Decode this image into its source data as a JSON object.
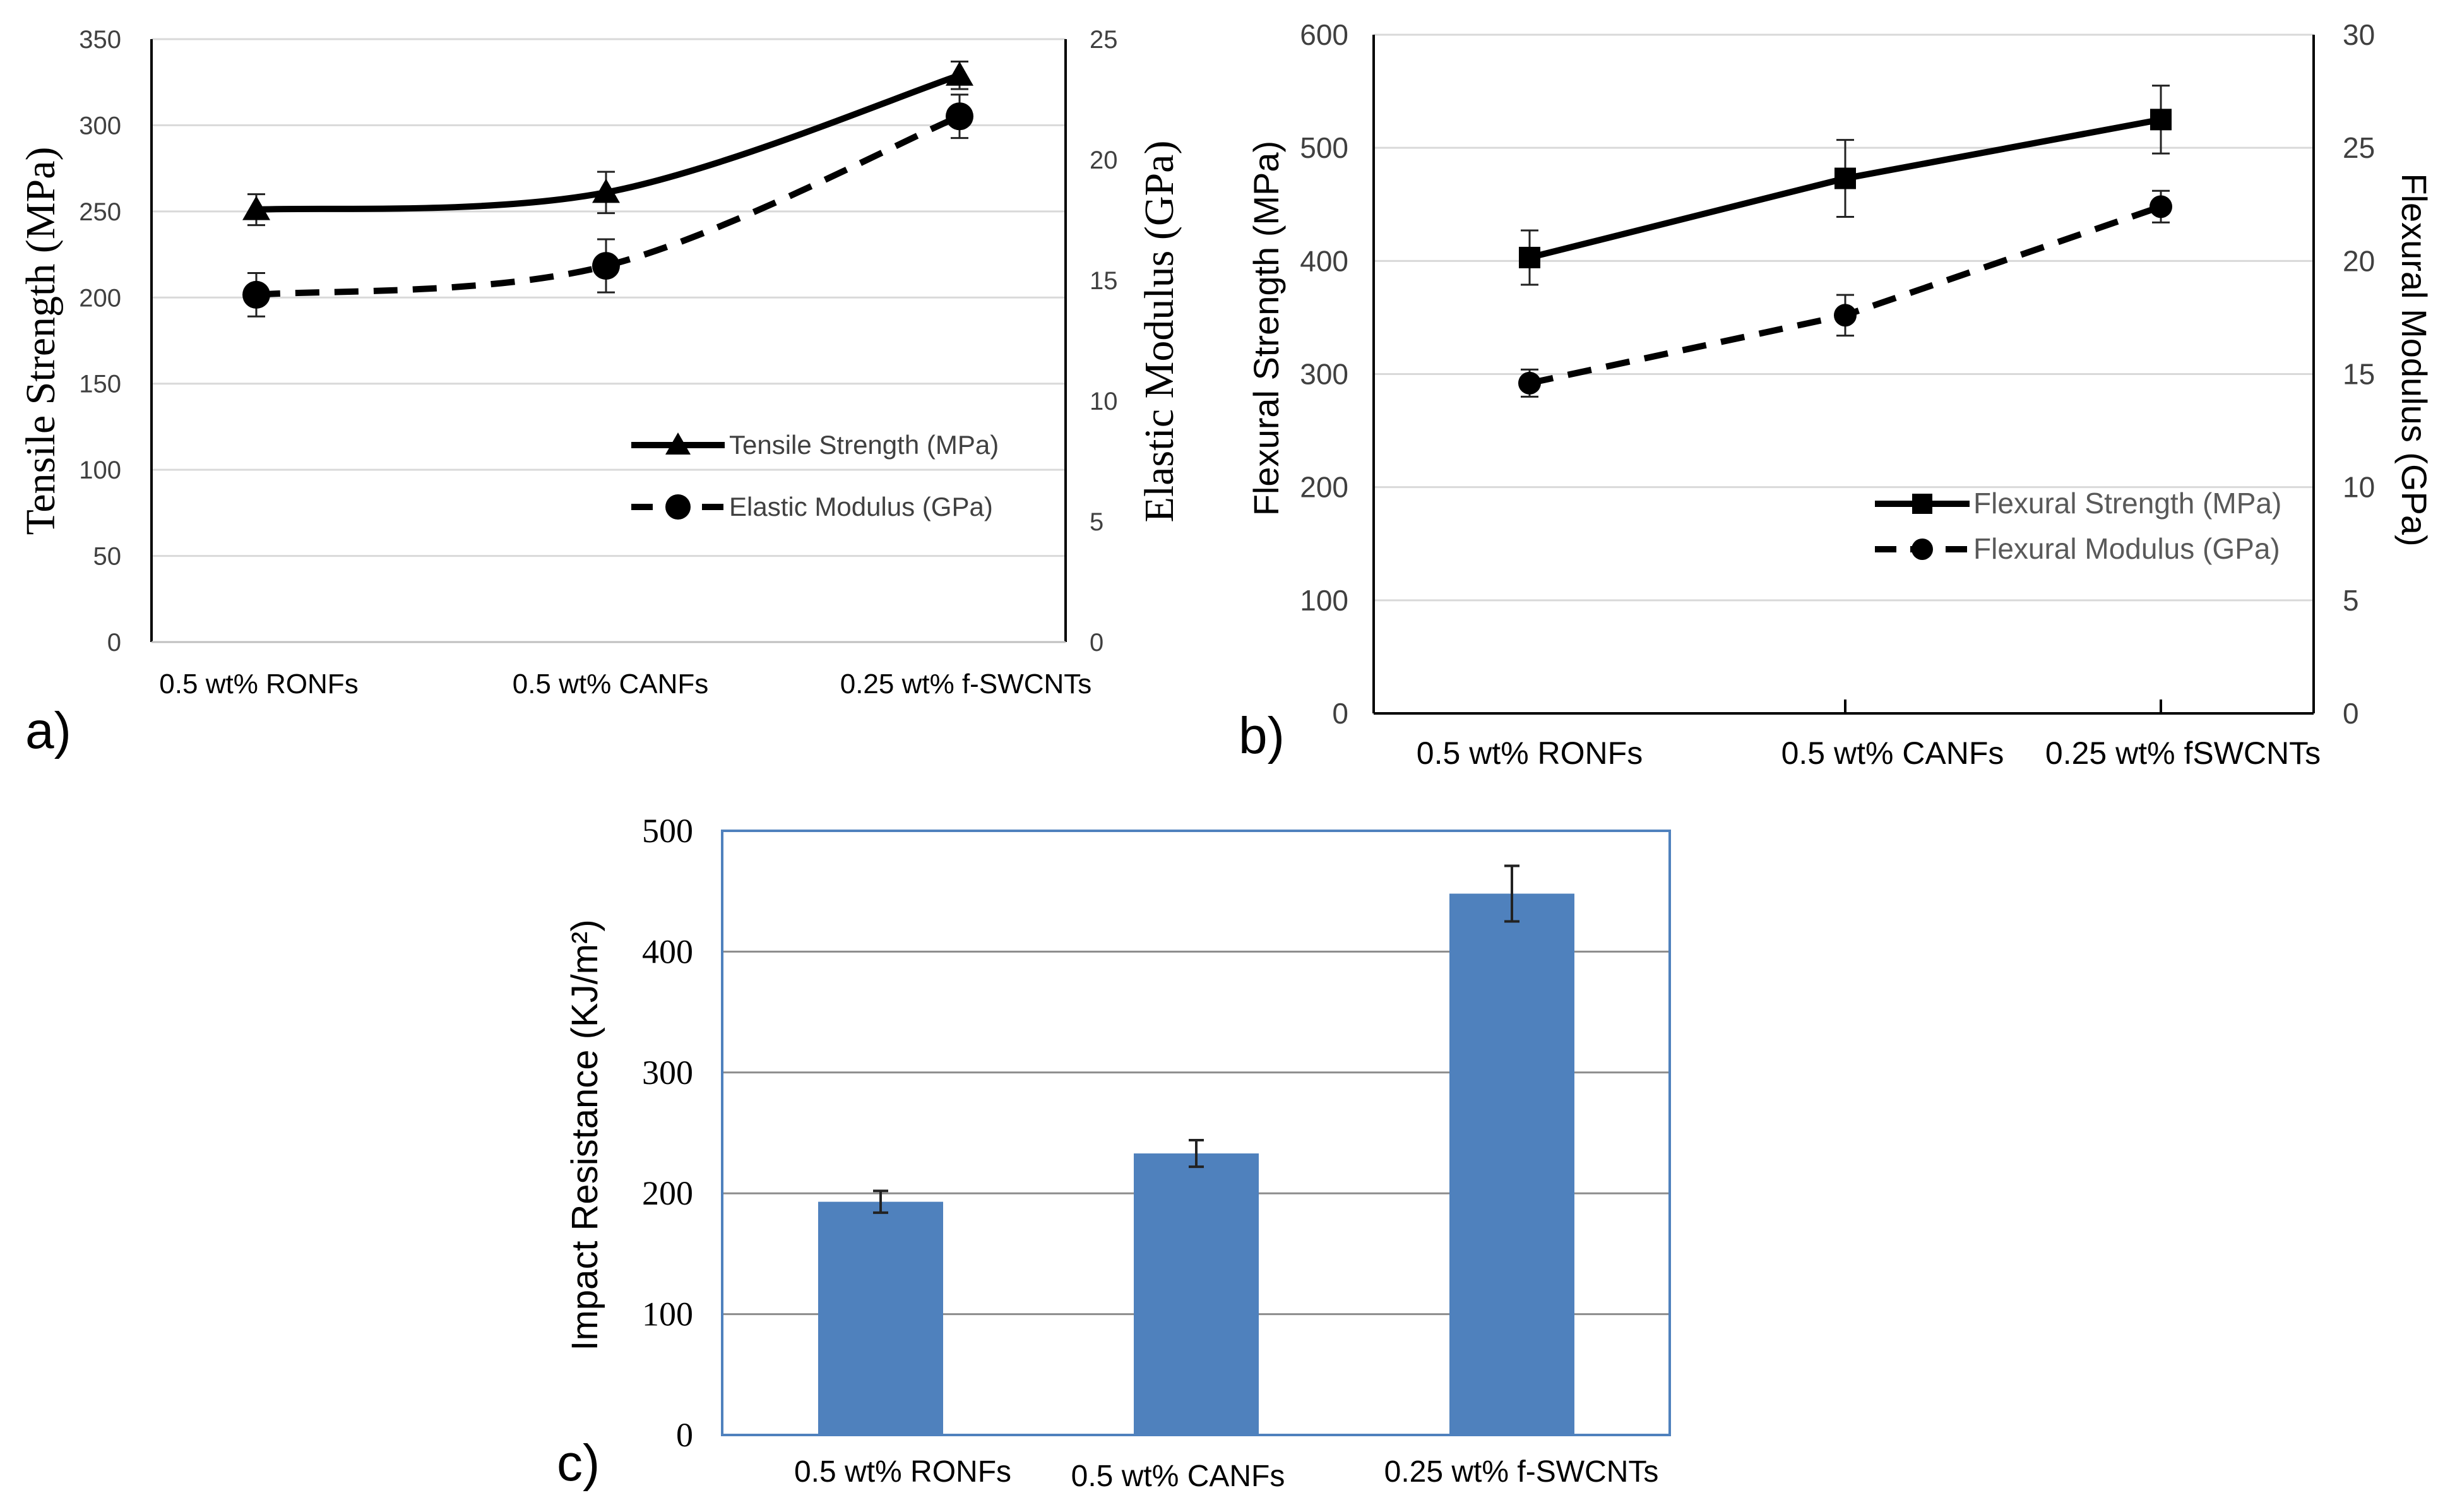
{
  "chart_data": [
    {
      "panel": "a)",
      "type": "line",
      "categories": [
        "0.5 wt% RONFs",
        "0.5 wt% CANFs",
        "0.25 wt% f-SWCNTs"
      ],
      "ylabel": "Tensile Strength (MPa)",
      "y2label": "Elastic Modulus (GPa)",
      "ylim": [
        0,
        350
      ],
      "y2lim": [
        0,
        25
      ],
      "yticks": [
        "0",
        "50",
        "100",
        "150",
        "200",
        "250",
        "300",
        "350"
      ],
      "y2ticks": [
        "0",
        "5",
        "10",
        "15",
        "20",
        "25"
      ],
      "grid": true,
      "legend_position": "bottom-right",
      "series": [
        {
          "name": "Tensile Strength (MPa)",
          "axis": "left",
          "marker": "triangle",
          "style": "solid",
          "values": [
            251,
            261,
            329
          ],
          "errors": [
            9,
            12,
            8
          ]
        },
        {
          "name": "Elastic Modulus (GPa)",
          "axis": "right",
          "marker": "circle",
          "style": "dashed",
          "values": [
            14.4,
            15.6,
            21.8
          ],
          "errors": [
            0.9,
            1.1,
            0.9
          ]
        }
      ]
    },
    {
      "panel": "b)",
      "type": "line",
      "categories": [
        "0.5 wt% RONFs",
        "0.5 wt% CANFs",
        "0.25 wt% fSWCNTs"
      ],
      "ylabel": "Flexural Strength (MPa)",
      "y2label": "Flexural Modulus (GPa)",
      "ylim": [
        0,
        600
      ],
      "y2lim": [
        0,
        30
      ],
      "yticks": [
        "0",
        "100",
        "200",
        "300",
        "400",
        "500",
        "600"
      ],
      "y2ticks": [
        "0",
        "5",
        "10",
        "15",
        "20",
        "25",
        "30"
      ],
      "grid": true,
      "legend_position": "bottom-right",
      "series": [
        {
          "name": "Flexural Strength (MPa)",
          "axis": "left",
          "marker": "square",
          "style": "solid",
          "values": [
            403,
            473,
            525
          ],
          "errors": [
            24,
            34,
            30
          ]
        },
        {
          "name": "Flexural Modulus (GPa)",
          "axis": "right",
          "marker": "circle",
          "style": "dashed",
          "values": [
            14.6,
            17.6,
            22.4
          ],
          "errors": [
            0.6,
            0.9,
            0.7
          ]
        }
      ]
    },
    {
      "panel": "c)",
      "type": "bar",
      "categories": [
        "0.5 wt% RONFs",
        "0.5 wt% CANFs",
        "0.25 wt% f-SWCNTs"
      ],
      "ylabel": "Impact Resistance (KJ/m²)",
      "ylim": [
        0,
        500
      ],
      "yticks": [
        "0",
        "100",
        "200",
        "300",
        "400",
        "500"
      ],
      "grid": true,
      "bar_color": "#4f81bd",
      "values": [
        193,
        233,
        448
      ],
      "errors": [
        9,
        11,
        23
      ]
    }
  ]
}
